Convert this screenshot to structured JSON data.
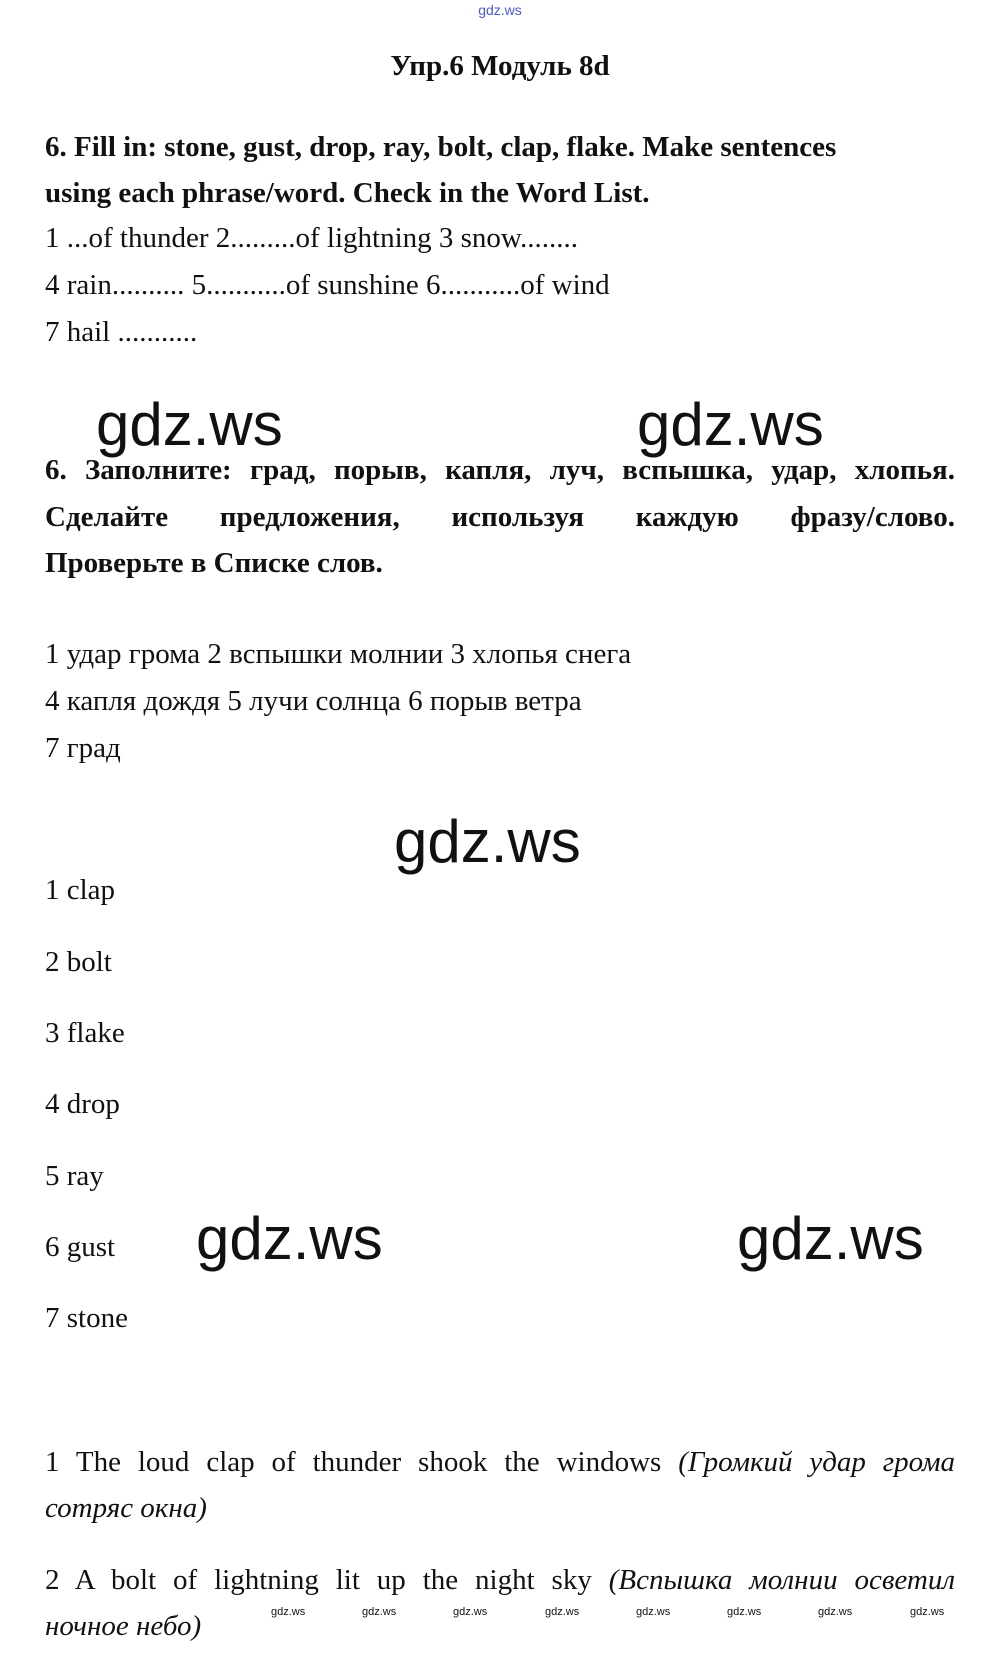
{
  "watermark_top": "gdz.ws",
  "title": "Упр.6 Модуль 8d",
  "task_en": [
    "6. Fill in: stone, gust, drop, ray, bolt, clap, flake. Make sentences",
    "using each phrase/word. Check in the Word List."
  ],
  "items_en": [
    "1 ...of thunder 2.........of lightning 3 snow........",
    "4 rain.......... 5...........of sunshine 6...........of wind",
    "7 hail ..........."
  ],
  "task_ru": [
    "6. Заполните: град, порыв, капля, луч, вспышка, удар, хлопья.",
    "Сделайте предложения, используя каждую фразу/слово.",
    "Проверьте в Списке слов."
  ],
  "items_ru": [
    "1 удар грома 2 вспышки молнии 3 хлопья снега",
    "4 капля дождя 5 лучи солнца 6 порыв ветра",
    "7 град"
  ],
  "answers": [
    "1 clap",
    "2 bolt",
    "3 flake",
    "4 drop",
    "5 ray",
    "6 gust",
    "7 stone"
  ],
  "sentences": [
    {
      "en": "1 The loud clap of thunder shook the windows",
      "ru_a": "(Громкий удар грома",
      "ru_b": "сотряс окна)"
    },
    {
      "en": "2 A bolt of lightning lit up the night sky",
      "ru_a": "(Вспышка молнии осветил",
      "ru_b": "ночное небо)"
    }
  ],
  "watermark": "gdz.ws"
}
